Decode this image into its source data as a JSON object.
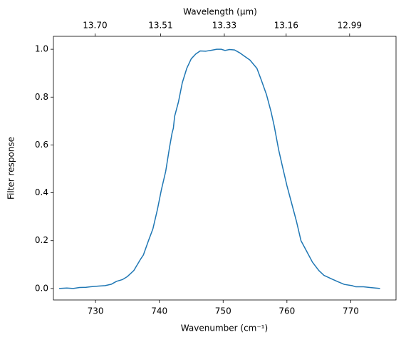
{
  "chart_data": {
    "type": "line",
    "xlabel": "Wavenumber (cm⁻¹)",
    "ylabel": "Filter response",
    "x2label": "Wavelength (μm)",
    "color": "#1f77b4",
    "x": [
      724.3,
      725.5,
      726.5,
      727.5,
      728.5,
      729.5,
      730.5,
      731.5,
      732.5,
      733.3,
      734.2,
      735,
      736,
      737,
      737.5,
      738.3,
      739,
      739.7,
      740.3,
      741,
      741.6,
      742,
      742.2,
      742.4,
      743,
      743.6,
      744.3,
      745,
      745.7,
      746.4,
      747.3,
      748.2,
      749,
      749.7,
      750.3,
      751,
      751.8,
      752.6,
      753.4,
      754.2,
      755.3,
      756,
      756.8,
      757.5,
      758,
      758.7,
      759.3,
      760,
      760.8,
      761.5,
      762.2,
      763,
      764,
      765,
      765.8,
      767,
      768,
      769,
      770.2,
      770.8,
      772,
      773,
      774.6
    ],
    "values": [
      0.0,
      0.002,
      0.0,
      0.004,
      0.005,
      0.008,
      0.01,
      0.012,
      0.018,
      0.03,
      0.037,
      0.05,
      0.075,
      0.12,
      0.14,
      0.2,
      0.25,
      0.33,
      0.41,
      0.49,
      0.59,
      0.65,
      0.67,
      0.72,
      0.78,
      0.86,
      0.92,
      0.96,
      0.98,
      0.993,
      0.992,
      0.996,
      1.0,
      1.0,
      0.995,
      0.999,
      0.997,
      0.985,
      0.97,
      0.955,
      0.92,
      0.87,
      0.81,
      0.74,
      0.68,
      0.58,
      0.51,
      0.43,
      0.35,
      0.28,
      0.2,
      0.16,
      0.11,
      0.075,
      0.055,
      0.04,
      0.028,
      0.017,
      0.012,
      0.007,
      0.007,
      0.004,
      0.0
    ],
    "xlim": [
      723.4,
      777.1
    ],
    "ylim": [
      -0.048,
      1.054
    ],
    "xticks": [
      730,
      740,
      750,
      760,
      770
    ],
    "yticks": [
      {
        "value": 0,
        "label": "0.0"
      },
      {
        "value": 0.2,
        "label": "0.2"
      },
      {
        "value": 0.4,
        "label": "0.4"
      },
      {
        "value": 0.6,
        "label": "0.6"
      },
      {
        "value": 0.8,
        "label": "0.8"
      },
      {
        "value": 1,
        "label": "1.0"
      }
    ],
    "x2ticks": [
      {
        "value": 13.7,
        "label": "13.70"
      },
      {
        "value": 13.51,
        "label": "13.51"
      },
      13.33,
      13.16,
      12.99
    ]
  }
}
